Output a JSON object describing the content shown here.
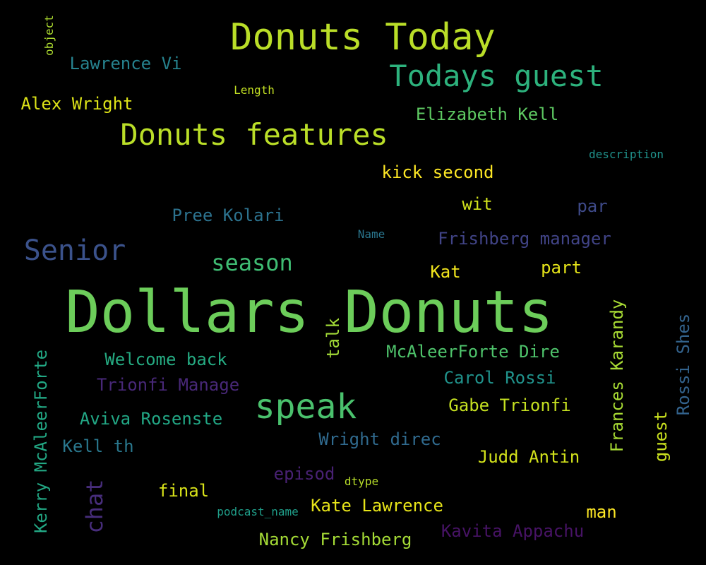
{
  "words": [
    {
      "text": "Dollars Donuts",
      "color": "#6ccd5a"
    },
    {
      "text": "Donuts Today",
      "color": "#bade28"
    },
    {
      "text": "Todays guest",
      "color": "#2db27d"
    },
    {
      "text": "Donuts features",
      "color": "#bade28"
    },
    {
      "text": "speak",
      "color": "#4ac16d"
    },
    {
      "text": "Senior",
      "color": "#3b528b"
    },
    {
      "text": "season",
      "color": "#3fbc73"
    },
    {
      "text": "Alex Wright",
      "color": "#dde318"
    },
    {
      "text": "Lawrence Vi",
      "color": "#26828e"
    },
    {
      "text": "Elizabeth Kell",
      "color": "#5ec962"
    },
    {
      "text": "kick second",
      "color": "#fde725"
    },
    {
      "text": "wit",
      "color": "#d0e11c"
    },
    {
      "text": "par",
      "color": "#3e4a89"
    },
    {
      "text": "Pree Kolari",
      "color": "#2c728e"
    },
    {
      "text": "Frishberg manager",
      "color": "#414487"
    },
    {
      "text": "Kat",
      "color": "#f1e51d"
    },
    {
      "text": "part",
      "color": "#e5e419"
    },
    {
      "text": "Welcome back",
      "color": "#25ab82"
    },
    {
      "text": "Trionfi Manage",
      "color": "#482878"
    },
    {
      "text": "Aviva Rosenste",
      "color": "#22a785"
    },
    {
      "text": "Kell th",
      "color": "#2a788e"
    },
    {
      "text": "episod",
      "color": "#482173"
    },
    {
      "text": "final",
      "color": "#d8e219"
    },
    {
      "text": "Kate Lawrence",
      "color": "#e7e419"
    },
    {
      "text": "Nancy Frishberg",
      "color": "#a5db36"
    },
    {
      "text": "Kavita Appachu",
      "color": "#471365"
    },
    {
      "text": "McAleerForte Dire",
      "color": "#4ec36b"
    },
    {
      "text": "Carol Rossi",
      "color": "#20938c"
    },
    {
      "text": "Gabe Trionfi",
      "color": "#c5e021"
    },
    {
      "text": "Wright direc",
      "color": "#306a8e"
    },
    {
      "text": "Judd Antin",
      "color": "#d2e21b"
    },
    {
      "text": "man",
      "color": "#fde725"
    },
    {
      "text": "Length",
      "color": "#c2df23"
    },
    {
      "text": "description",
      "color": "#20928c"
    },
    {
      "text": "Name",
      "color": "#2a768e"
    },
    {
      "text": "dtype",
      "color": "#b8de29"
    },
    {
      "text": "podcast_name",
      "color": "#1f9e89"
    },
    {
      "text": "object",
      "color": "#addc30"
    },
    {
      "text": "talk",
      "color": "#a2da37"
    },
    {
      "text": "Kerry McAleerForte",
      "color": "#22a884"
    },
    {
      "text": "chat",
      "color": "#472d7b"
    },
    {
      "text": "Frances Karandy",
      "color": "#a8db34"
    },
    {
      "text": "guest",
      "color": "#cae11f"
    },
    {
      "text": "Rossi Shes",
      "color": "#33638d"
    }
  ]
}
